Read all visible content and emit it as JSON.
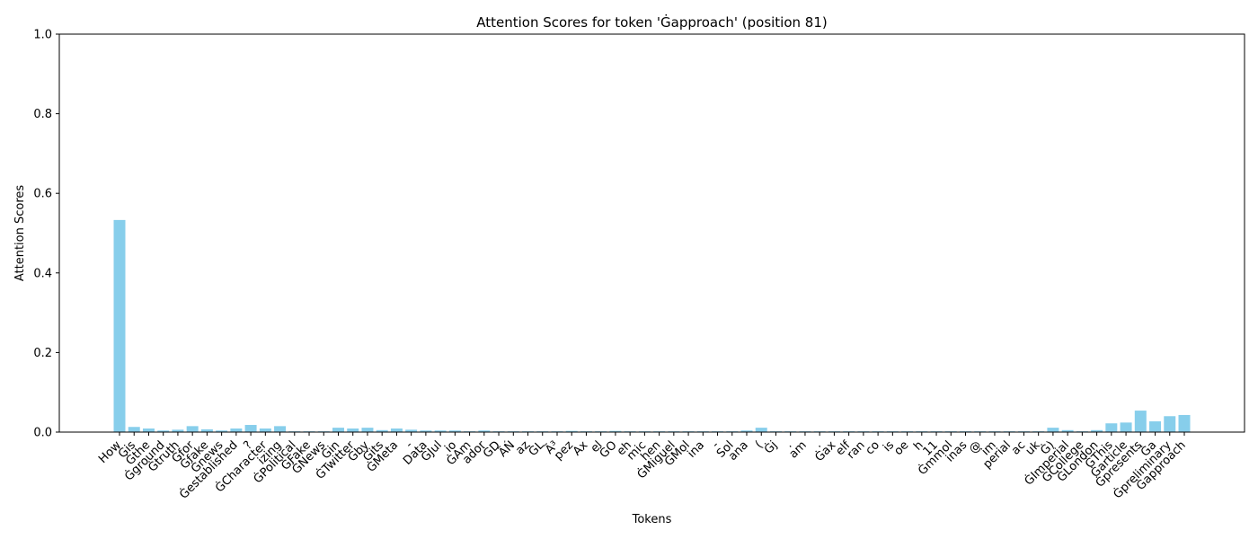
{
  "chart_data": {
    "type": "bar",
    "title": "Attention Scores for token 'Ġapproach' (position 81)",
    "xlabel": "Tokens",
    "ylabel": "Attention Scores",
    "ylim": [
      0,
      1
    ],
    "yticks": [
      "0.0",
      "0.2",
      "0.4",
      "0.6",
      "0.8",
      "1.0"
    ],
    "ytick_values": [
      0,
      0.2,
      0.4,
      0.6,
      0.8,
      1.0
    ],
    "bar_color": "#87ceeb",
    "grid": false,
    "categories": [
      "How",
      "Ġis",
      "Ġthe",
      "Ġground",
      "Ġtruth",
      "Ġfor",
      "Ġfake",
      "Ġnews",
      "Ġestablished",
      "?",
      "ĠCharacter",
      "izing",
      "ĠPolitical",
      "ĠFake",
      "ĠNews",
      "Ġin",
      "ĠTwitter",
      "Ġby",
      "Ġits",
      "ĠMeta",
      "-",
      "Data",
      "ĠJul",
      "io",
      "ĠAm",
      "ador",
      "ĠD",
      "ÃŃ",
      "az",
      "ĠL",
      "Ã³",
      "pez",
      "Ax",
      "el",
      "ĠO",
      "eh",
      "mic",
      "hen",
      "ĠMiguel",
      "ĠMol",
      "ina",
      "-",
      "Sol",
      "ana",
      "(",
      "Ġj",
      ".",
      "am",
      ".",
      "Ġax",
      "elf",
      "ran",
      "co",
      "is",
      "oe",
      "h",
      "11",
      "Ġmmol",
      "inas",
      "@",
      "im",
      "perial",
      "ac",
      "uk",
      "Ġ)",
      "ĠImperial",
      "ĠCollege",
      "ĠLondon",
      "ĠThis",
      "Ġarticle",
      "Ġpresents",
      "Ġa",
      "Ġpreliminary",
      "Ġapproach"
    ],
    "values": [
      0.533,
      0.013,
      0.009,
      0.004,
      0.006,
      0.015,
      0.007,
      0.004,
      0.009,
      0.018,
      0.009,
      0.015,
      0.002,
      0.002,
      0.002,
      0.011,
      0.009,
      0.011,
      0.005,
      0.009,
      0.006,
      0.004,
      0.004,
      0.004,
      0.002,
      0.004,
      0.002,
      0.002,
      0.002,
      0.002,
      0.002,
      0.003,
      0.002,
      0.002,
      0.003,
      0.002,
      0.002,
      0.002,
      0.002,
      0.002,
      0.002,
      0.002,
      0.002,
      0.004,
      0.011,
      0.002,
      0.002,
      0.002,
      0.002,
      0.002,
      0.002,
      0.002,
      0.002,
      0.002,
      0.002,
      0.002,
      0.002,
      0.002,
      0.002,
      0.002,
      0.002,
      0.002,
      0.002,
      0.002,
      0.011,
      0.005,
      0.002,
      0.005,
      0.022,
      0.024,
      0.054,
      0.027,
      0.04,
      0.043
    ]
  }
}
